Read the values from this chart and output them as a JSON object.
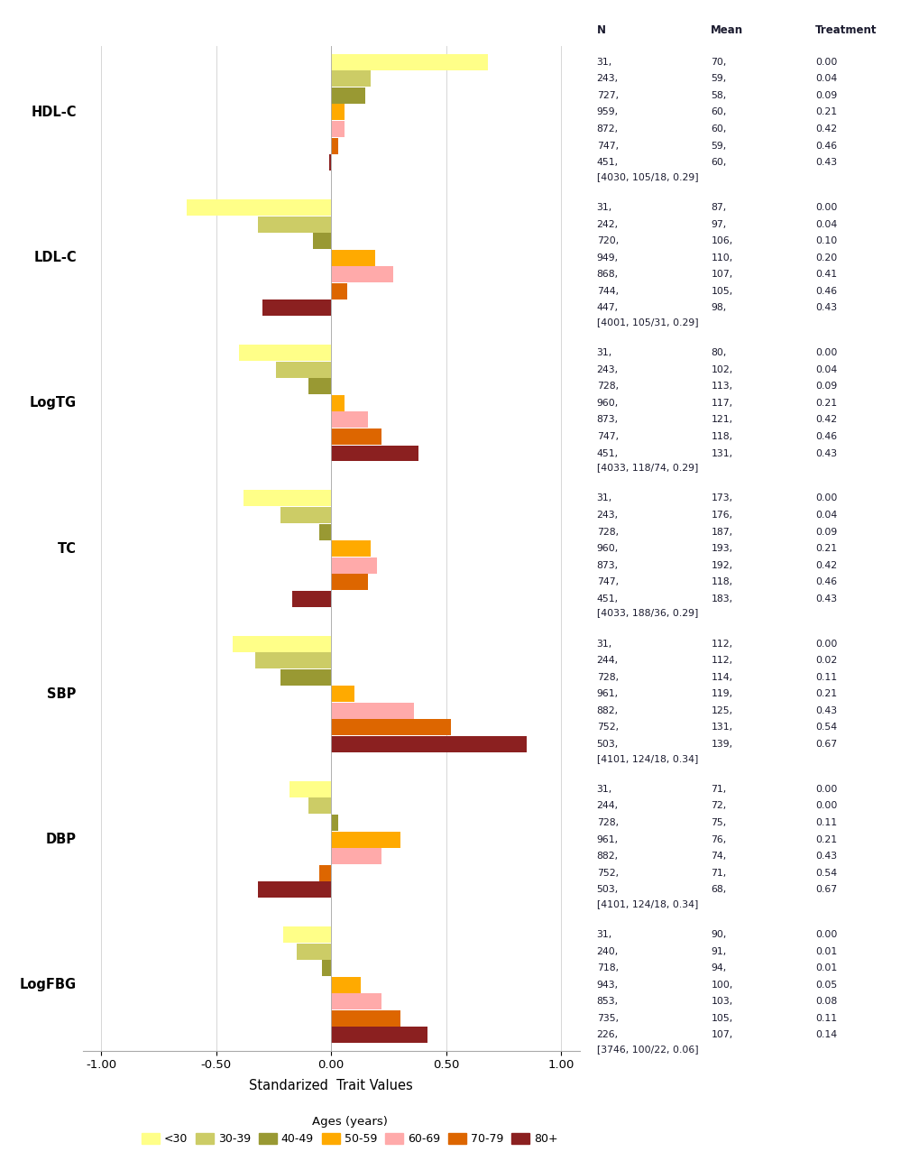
{
  "traits": [
    "HDL-C",
    "LDL-C",
    "LogTG",
    "TC",
    "SBP",
    "DBP",
    "LogFBG"
  ],
  "age_groups": [
    "<30",
    "30-39",
    "40-49",
    "50-59",
    "60-69",
    "70-79",
    "80+"
  ],
  "colors": [
    "#FFFF88",
    "#CCCC66",
    "#999933",
    "#FFAA00",
    "#FFAAAA",
    "#DD6600",
    "#8B2020"
  ],
  "bar_values": {
    "HDL-C": [
      0.68,
      0.17,
      0.15,
      0.06,
      0.06,
      0.03,
      -0.01
    ],
    "LDL-C": [
      -0.63,
      -0.32,
      -0.08,
      0.19,
      0.27,
      0.07,
      -0.3
    ],
    "LogTG": [
      -0.4,
      -0.24,
      -0.1,
      0.06,
      0.16,
      0.22,
      0.38
    ],
    "TC": [
      -0.38,
      -0.22,
      -0.05,
      0.17,
      0.2,
      0.16,
      -0.17
    ],
    "SBP": [
      -0.43,
      -0.33,
      -0.22,
      0.1,
      0.36,
      0.52,
      0.85
    ],
    "DBP": [
      -0.18,
      -0.1,
      0.03,
      0.3,
      0.22,
      -0.05,
      -0.32
    ],
    "LogFBG": [
      -0.21,
      -0.15,
      -0.04,
      0.13,
      0.22,
      0.3,
      0.42
    ]
  },
  "table_data": {
    "HDL-C": {
      "rows": [
        [
          "31,",
          "70,",
          "0.00"
        ],
        [
          "243,",
          "59,",
          "0.04"
        ],
        [
          "727,",
          "58,",
          "0.09"
        ],
        [
          "959,",
          "60,",
          "0.21"
        ],
        [
          "872,",
          "60,",
          "0.42"
        ],
        [
          "747,",
          "59,",
          "0.46"
        ],
        [
          "451,",
          "60,",
          "0.43"
        ]
      ],
      "summary": "[4030, 105/18, 0.29]"
    },
    "LDL-C": {
      "rows": [
        [
          "31,",
          "87,",
          "0.00"
        ],
        [
          "242,",
          "97,",
          "0.04"
        ],
        [
          "720,",
          "106,",
          "0.10"
        ],
        [
          "949,",
          "110,",
          "0.20"
        ],
        [
          "868,",
          "107,",
          "0.41"
        ],
        [
          "744,",
          "105,",
          "0.46"
        ],
        [
          "447,",
          "98,",
          "0.43"
        ]
      ],
      "summary": "[4001, 105/31, 0.29]"
    },
    "LogTG": {
      "rows": [
        [
          "31,",
          "80,",
          "0.00"
        ],
        [
          "243,",
          "102,",
          "0.04"
        ],
        [
          "728,",
          "113,",
          "0.09"
        ],
        [
          "960,",
          "117,",
          "0.21"
        ],
        [
          "873,",
          "121,",
          "0.42"
        ],
        [
          "747,",
          "118,",
          "0.46"
        ],
        [
          "451,",
          "131,",
          "0.43"
        ]
      ],
      "summary": "[4033, 118/74, 0.29]"
    },
    "TC": {
      "rows": [
        [
          "31,",
          "173,",
          "0.00"
        ],
        [
          "243,",
          "176,",
          "0.04"
        ],
        [
          "728,",
          "187,",
          "0.09"
        ],
        [
          "960,",
          "193,",
          "0.21"
        ],
        [
          "873,",
          "192,",
          "0.42"
        ],
        [
          "747,",
          "118,",
          "0.46"
        ],
        [
          "451,",
          "183,",
          "0.43"
        ]
      ],
      "summary": "[4033, 188/36, 0.29]"
    },
    "SBP": {
      "rows": [
        [
          "31,",
          "112,",
          "0.00"
        ],
        [
          "244,",
          "112,",
          "0.02"
        ],
        [
          "728,",
          "114,",
          "0.11"
        ],
        [
          "961,",
          "119,",
          "0.21"
        ],
        [
          "882,",
          "125,",
          "0.43"
        ],
        [
          "752,",
          "131,",
          "0.54"
        ],
        [
          "503,",
          "139,",
          "0.67"
        ]
      ],
      "summary": "[4101, 124/18, 0.34]"
    },
    "DBP": {
      "rows": [
        [
          "31,",
          "71,",
          "0.00"
        ],
        [
          "244,",
          "72,",
          "0.00"
        ],
        [
          "728,",
          "75,",
          "0.11"
        ],
        [
          "961,",
          "76,",
          "0.21"
        ],
        [
          "882,",
          "74,",
          "0.43"
        ],
        [
          "752,",
          "71,",
          "0.54"
        ],
        [
          "503,",
          "68,",
          "0.67"
        ]
      ],
      "summary": "[4101, 124/18, 0.34]"
    },
    "LogFBG": {
      "rows": [
        [
          "31,",
          "90,",
          "0.00"
        ],
        [
          "240,",
          "91,",
          "0.01"
        ],
        [
          "718,",
          "94,",
          "0.01"
        ],
        [
          "943,",
          "100,",
          "0.05"
        ],
        [
          "853,",
          "103,",
          "0.08"
        ],
        [
          "735,",
          "105,",
          "0.11"
        ],
        [
          "226,",
          "107,",
          "0.14"
        ]
      ],
      "summary": "[3746, 100/22, 0.06]"
    }
  },
  "xlabel": "Standarized  Trait Values",
  "xlim": [
    -1.08,
    1.08
  ],
  "xticks": [
    -1.0,
    -0.5,
    0.0,
    0.5,
    1.0
  ],
  "xtick_labels": [
    "-1.00",
    "-0.50",
    "0.00",
    "0.50",
    "1.00"
  ],
  "legend_labels": [
    "<30",
    "30-39",
    "40-49",
    "50-59",
    "60-69",
    "70-79",
    "80+"
  ]
}
